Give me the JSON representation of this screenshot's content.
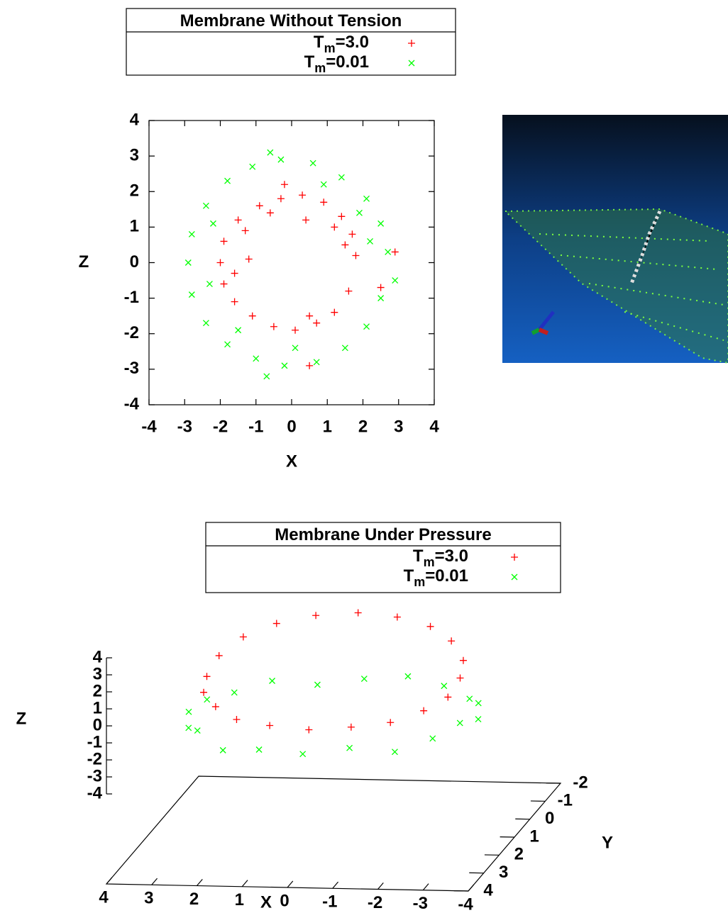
{
  "chart_data": [
    {
      "type": "scatter",
      "title": "Membrane Without Tension",
      "xlabel": "X",
      "ylabel": "Z",
      "xlim": [
        -4,
        4
      ],
      "ylim": [
        -4,
        4
      ],
      "xticks": [
        -4,
        -3,
        -2,
        -1,
        0,
        1,
        2,
        3,
        4
      ],
      "yticks": [
        -4,
        -3,
        -2,
        -1,
        0,
        1,
        2,
        3,
        4
      ],
      "series": [
        {
          "name": "Tm=3.0",
          "color": "#ff0000",
          "marker": "+",
          "x": [
            1.8,
            1.7,
            1.4,
            0.9,
            0.3,
            -0.3,
            -0.9,
            -1.5,
            -1.9,
            -2.0,
            -1.9,
            -1.6,
            -1.1,
            -0.5,
            0.1,
            0.7,
            1.2,
            1.6,
            1.5,
            1.2,
            -1.3,
            -1.6,
            0.5,
            -0.6,
            2.9,
            0.5,
            -1.2,
            0.4,
            2.5,
            -0.2
          ],
          "y": [
            0.2,
            0.8,
            1.3,
            1.7,
            1.9,
            1.8,
            1.6,
            1.2,
            0.6,
            0,
            -0.6,
            -1.1,
            -1.5,
            -1.8,
            -1.9,
            -1.7,
            -1.4,
            -0.8,
            0.5,
            1.0,
            0.9,
            -0.3,
            -1.5,
            1.4,
            0.3,
            -2.9,
            0.1,
            1.2,
            -0.7,
            2.2
          ]
        },
        {
          "name": "Tm=0.01",
          "color": "#00ff00",
          "marker": "x",
          "x": [
            2.7,
            2.5,
            2.1,
            1.4,
            0.6,
            -0.3,
            -1.1,
            -1.8,
            -2.4,
            -2.8,
            -2.9,
            -2.8,
            -2.4,
            -1.8,
            -1.0,
            -0.2,
            0.7,
            1.5,
            2.1,
            2.5,
            2.2,
            1.9,
            -2.2,
            -2.3,
            0.1,
            0.9,
            -0.6,
            -0.7,
            2.9,
            -1.5
          ],
          "y": [
            0.3,
            1.1,
            1.8,
            2.4,
            2.8,
            2.9,
            2.7,
            2.3,
            1.6,
            0.8,
            0,
            -0.9,
            -1.7,
            -2.3,
            -2.7,
            -2.9,
            -2.8,
            -2.4,
            -1.8,
            -1.0,
            0.6,
            1.4,
            1.1,
            -0.6,
            -2.4,
            2.2,
            3.1,
            -3.2,
            -0.5,
            -1.9
          ]
        }
      ]
    },
    {
      "type": "scatter3d",
      "title": "Membrane Under Pressure",
      "xlabel": "X",
      "ylabel": "Y",
      "zlabel": "Z",
      "xlim": [
        -4,
        4
      ],
      "ylim": [
        -2,
        4
      ],
      "zlim": [
        -4,
        4
      ],
      "xticks": [
        4,
        3,
        2,
        1,
        0,
        -1,
        -2,
        -3,
        -4
      ],
      "yticks": [
        -2,
        -1,
        0,
        1,
        2,
        3,
        4
      ],
      "zticks": [
        4,
        3,
        2,
        1,
        0,
        -1,
        -2,
        -3,
        -4
      ],
      "series": [
        {
          "name": "Tm=3.0",
          "color": "#ff0000",
          "marker": "+",
          "x": [
            2.8,
            2.7,
            2.3,
            1.7,
            0.9,
            0,
            -0.9,
            -1.7,
            -2.3,
            -2.7,
            -2.8,
            -2.7,
            -2.3,
            -1.7,
            -0.9,
            0,
            0.9,
            1.7,
            2.3,
            2.7
          ],
          "y": [
            1,
            1.5,
            1.9,
            2.3,
            2.5,
            2.6,
            2.5,
            2.3,
            1.9,
            1.5,
            1,
            0.5,
            0.1,
            -0.3,
            -0.5,
            -0.6,
            -0.5,
            -0.3,
            0.1,
            0.5
          ],
          "z": [
            -0.2,
            -0.6,
            -1.0,
            -1.3,
            -1.4,
            -1.5,
            -1.4,
            -1.3,
            -1.0,
            -0.6,
            0.0,
            0.5,
            1.2,
            1.6,
            1.9,
            2.0,
            1.9,
            1.6,
            1.2,
            0.5
          ]
        },
        {
          "name": "Tm=0.01",
          "color": "#00ff00",
          "marker": "x",
          "x": [
            3.2,
            3.0,
            2.6,
            1.9,
            1.0,
            0,
            -1.0,
            -1.9,
            -2.6,
            -3.0,
            -3.2,
            -3.0,
            -2.6,
            -1.9,
            -1.0,
            0,
            1.0,
            1.9,
            2.6,
            3.0
          ],
          "y": [
            1,
            1.6,
            2.2,
            2.6,
            2.9,
            3,
            2.9,
            2.6,
            2.2,
            1.6,
            1,
            0.4,
            -0.2,
            -0.6,
            -0.9,
            -1,
            -0.9,
            -0.6,
            -0.2,
            0.4
          ],
          "z": [
            -2.3,
            -2.6,
            -2.1,
            -2.8,
            -2.4,
            -2.5,
            -2.2,
            -2.7,
            -2.3,
            -2.0,
            -2.4,
            -2.1,
            -2.5,
            -2.2,
            -2.0,
            -2.3,
            -2.6,
            -2.1,
            -2.4,
            -2.2
          ]
        }
      ]
    }
  ]
}
